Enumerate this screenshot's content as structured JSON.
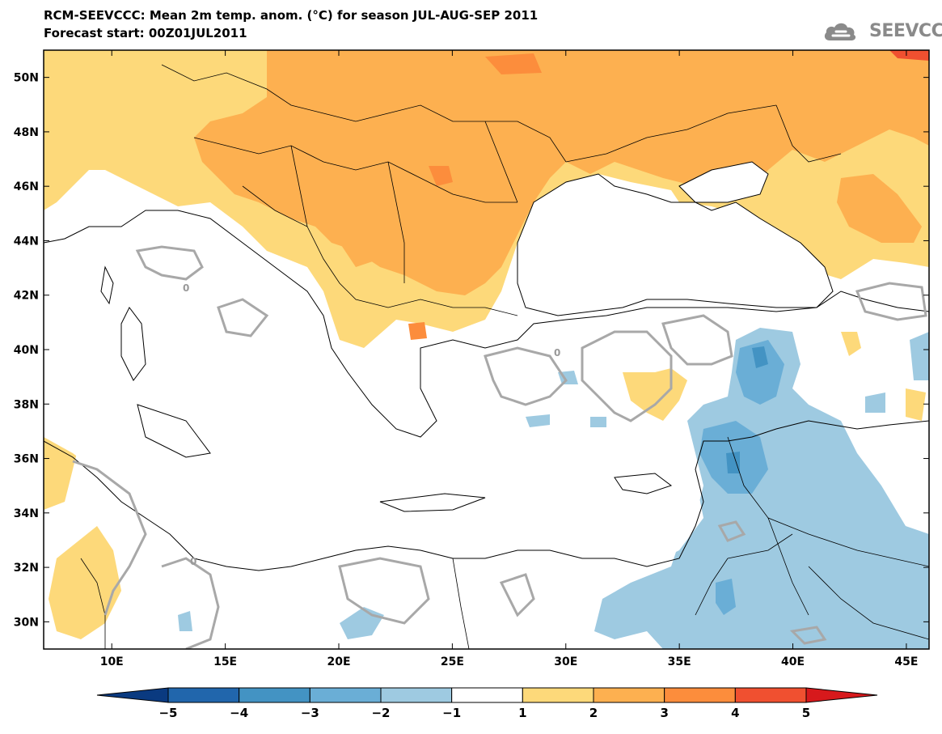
{
  "header": {
    "title_line1": "RCM-SEEVCCC: Mean 2m temp. anom. (°C) for season JUL-AUG-SEP 2011",
    "title_line2": "Forecast start: 00Z01JUL2011"
  },
  "logo": {
    "text": "SEEVCCC",
    "icon": "cloud-icon",
    "color": "#8a8a8a"
  },
  "map": {
    "lon_range": [
      7,
      46
    ],
    "lat_range": [
      29,
      51
    ],
    "lat_ticks": [
      "50N",
      "48N",
      "46N",
      "44N",
      "42N",
      "40N",
      "38N",
      "36N",
      "34N",
      "32N",
      "30N"
    ],
    "lon_ticks": [
      "10E",
      "15E",
      "20E",
      "25E",
      "30E",
      "35E",
      "40E",
      "45E"
    ],
    "contour_label": "0"
  },
  "colorbar": {
    "colors": [
      "#0a3a80",
      "#2166ac",
      "#4393c3",
      "#6aaed6",
      "#9ecae1",
      "#ffffff",
      "#fdd97a",
      "#fdb050",
      "#fc8d3c",
      "#f05030",
      "#d7191c"
    ],
    "labels": [
      "-5",
      "-4",
      "-3",
      "-2",
      "-1",
      "1",
      "2",
      "3",
      "4",
      "5"
    ]
  }
}
